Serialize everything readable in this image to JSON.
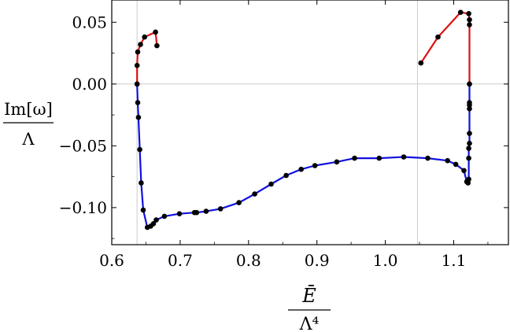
{
  "chart_data": {
    "type": "line",
    "title": "",
    "xlabel": {
      "numerator": "Ē",
      "denominator": "Λ⁴"
    },
    "ylabel": {
      "numerator": "Im[ω]",
      "denominator": "Λ"
    },
    "xlim": [
      0.6,
      1.18
    ],
    "ylim": [
      -0.13,
      0.068
    ],
    "xticks": [
      {
        "value": 0.6,
        "label": "0.6"
      },
      {
        "value": 0.7,
        "label": "0.7"
      },
      {
        "value": 0.8,
        "label": "0.8"
      },
      {
        "value": 0.9,
        "label": "0.9"
      },
      {
        "value": 1.0,
        "label": "1.0"
      },
      {
        "value": 1.1,
        "label": "1.1"
      }
    ],
    "yticks": [
      {
        "value": 0.05,
        "label": "0.05"
      },
      {
        "value": 0.0,
        "label": "0.00"
      },
      {
        "value": -0.05,
        "label": "−0.05"
      },
      {
        "value": -0.1,
        "label": "−0.10"
      }
    ],
    "reference_lines": {
      "vertical": [
        0.637,
        1.047
      ],
      "horizontal": [
        0.0
      ]
    },
    "legend": "none",
    "grid": false,
    "series": [
      {
        "color": "#dd1111",
        "points": [
          [
            0.637,
            0.0
          ],
          [
            0.637,
            0.015
          ],
          [
            0.638,
            0.026
          ],
          [
            0.642,
            0.032
          ],
          [
            0.648,
            0.038
          ],
          [
            0.664,
            0.042
          ],
          [
            0.666,
            0.031
          ]
        ]
      },
      {
        "color": "#dd1111",
        "points": [
          [
            1.052,
            0.017
          ],
          [
            1.077,
            0.038
          ],
          [
            1.11,
            0.058
          ],
          [
            1.122,
            0.057
          ],
          [
            1.123,
            0.052
          ],
          [
            1.123,
            0.048
          ],
          [
            1.123,
            0.0
          ]
        ]
      },
      {
        "color": "#1111dd",
        "points": [
          [
            0.637,
            0.0
          ],
          [
            0.638,
            -0.015
          ],
          [
            0.639,
            -0.027
          ],
          [
            0.641,
            -0.053
          ],
          [
            0.643,
            -0.08
          ],
          [
            0.646,
            -0.102
          ],
          [
            0.652,
            -0.116
          ],
          [
            0.657,
            -0.115
          ],
          [
            0.661,
            -0.113
          ],
          [
            0.665,
            -0.11
          ],
          [
            0.677,
            -0.107
          ],
          [
            0.699,
            -0.105
          ],
          [
            0.721,
            -0.104
          ],
          [
            0.724,
            -0.104
          ],
          [
            0.738,
            -0.103
          ],
          [
            0.759,
            -0.101
          ],
          [
            0.786,
            -0.096
          ],
          [
            0.809,
            -0.089
          ],
          [
            0.833,
            -0.081
          ],
          [
            0.855,
            -0.074
          ],
          [
            0.877,
            -0.069
          ],
          [
            0.897,
            -0.066
          ],
          [
            0.929,
            -0.063
          ],
          [
            0.955,
            -0.06
          ],
          [
            0.991,
            -0.06
          ],
          [
            1.027,
            -0.059
          ],
          [
            1.062,
            -0.06
          ],
          [
            1.091,
            -0.062
          ],
          [
            1.103,
            -0.065
          ],
          [
            1.115,
            -0.07
          ],
          [
            1.119,
            -0.079
          ],
          [
            1.121,
            -0.08
          ],
          [
            1.122,
            -0.077
          ],
          [
            1.122,
            -0.06
          ],
          [
            1.122,
            -0.052
          ],
          [
            1.123,
            -0.048
          ],
          [
            1.123,
            -0.04
          ],
          [
            1.123,
            -0.02
          ],
          [
            1.123,
            -0.017
          ],
          [
            1.123,
            -0.015
          ],
          [
            1.123,
            0.0
          ]
        ]
      }
    ]
  }
}
